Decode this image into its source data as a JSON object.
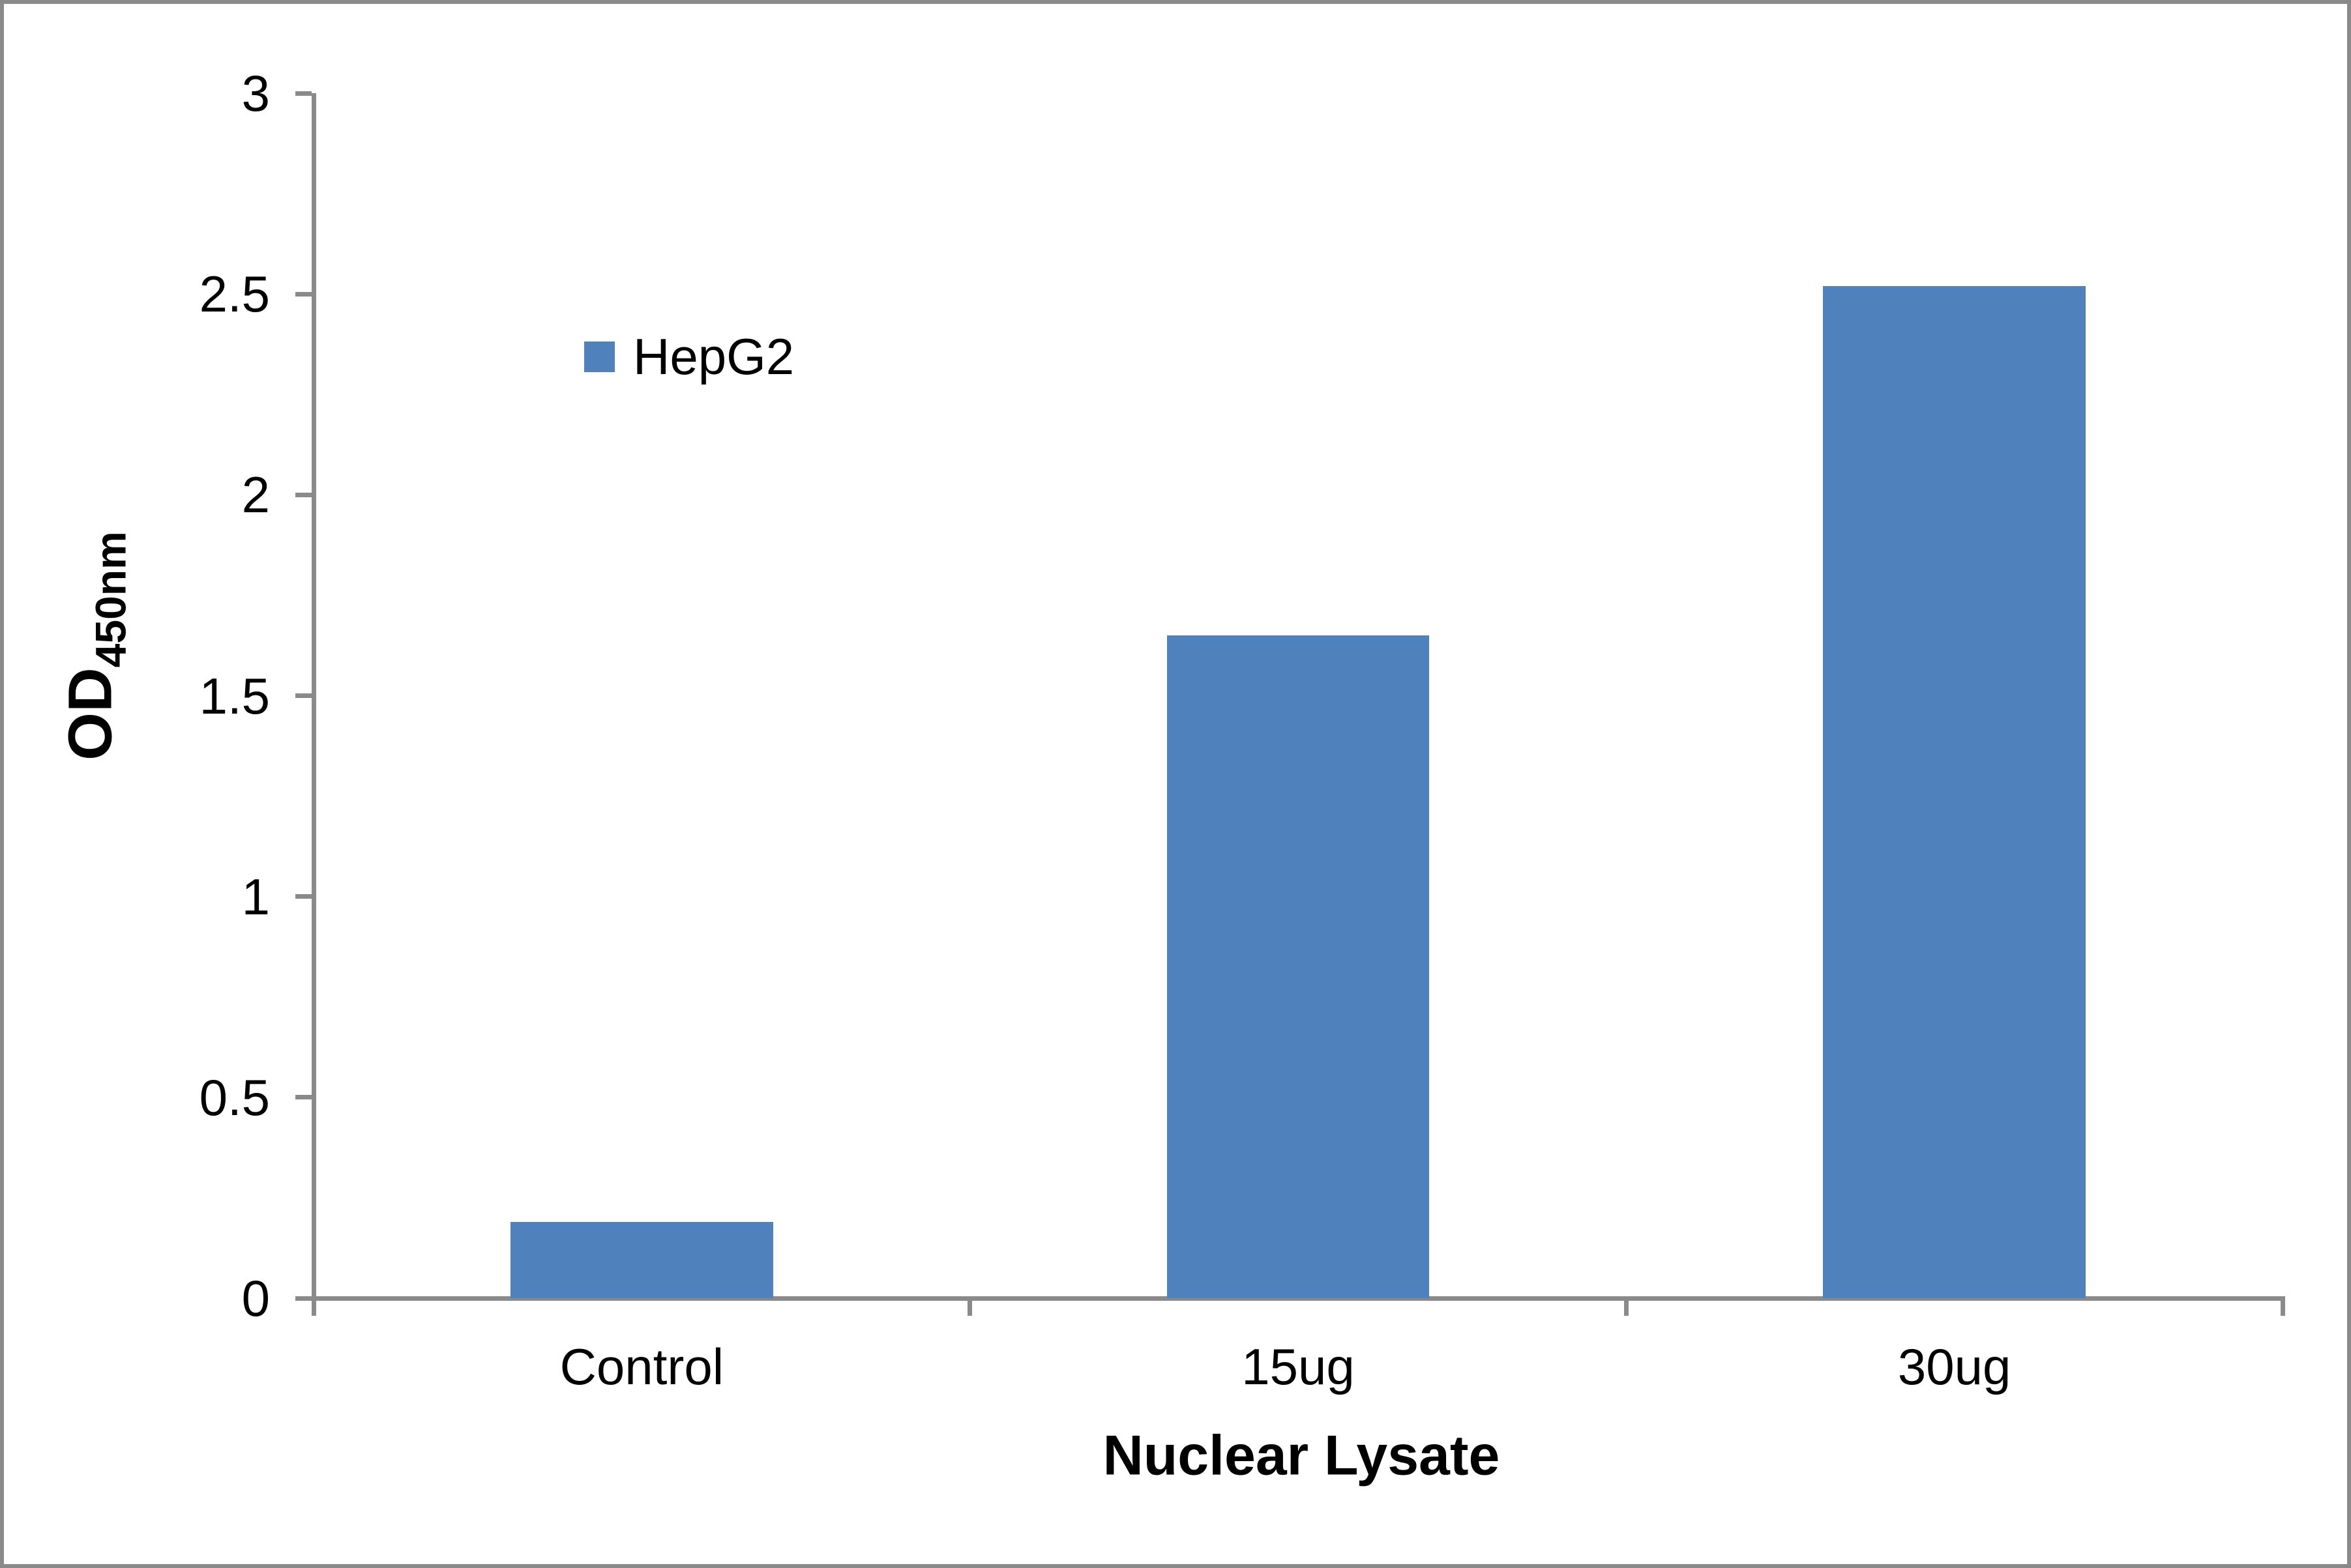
{
  "chart_data": {
    "type": "bar",
    "title": "",
    "categories": [
      "Control",
      "15ug",
      "30ug"
    ],
    "series": [
      {
        "name": "HepG2",
        "values": [
          0.19,
          1.65,
          2.52
        ]
      }
    ],
    "xlabel": "Nuclear Lysate",
    "ylabel_main": "OD",
    "ylabel_sub": "450nm",
    "ylim": [
      0,
      3
    ],
    "y_ticks": [
      0,
      0.5,
      1,
      1.5,
      2,
      2.5,
      3
    ],
    "y_tick_labels": [
      "0",
      "0.5",
      "1",
      "1.5",
      "2",
      "2.5",
      "3"
    ],
    "grid": false,
    "gap_ratio": 1.5,
    "legend": {
      "position": "inside-top-left",
      "items": [
        {
          "label": "HepG2",
          "color": "#4F81BD"
        }
      ]
    },
    "bar_color": "#4F81BD",
    "axis_color": "#8A8A8A",
    "frame_color": "#8A8A8A",
    "background_color": "#FFFFFF"
  }
}
